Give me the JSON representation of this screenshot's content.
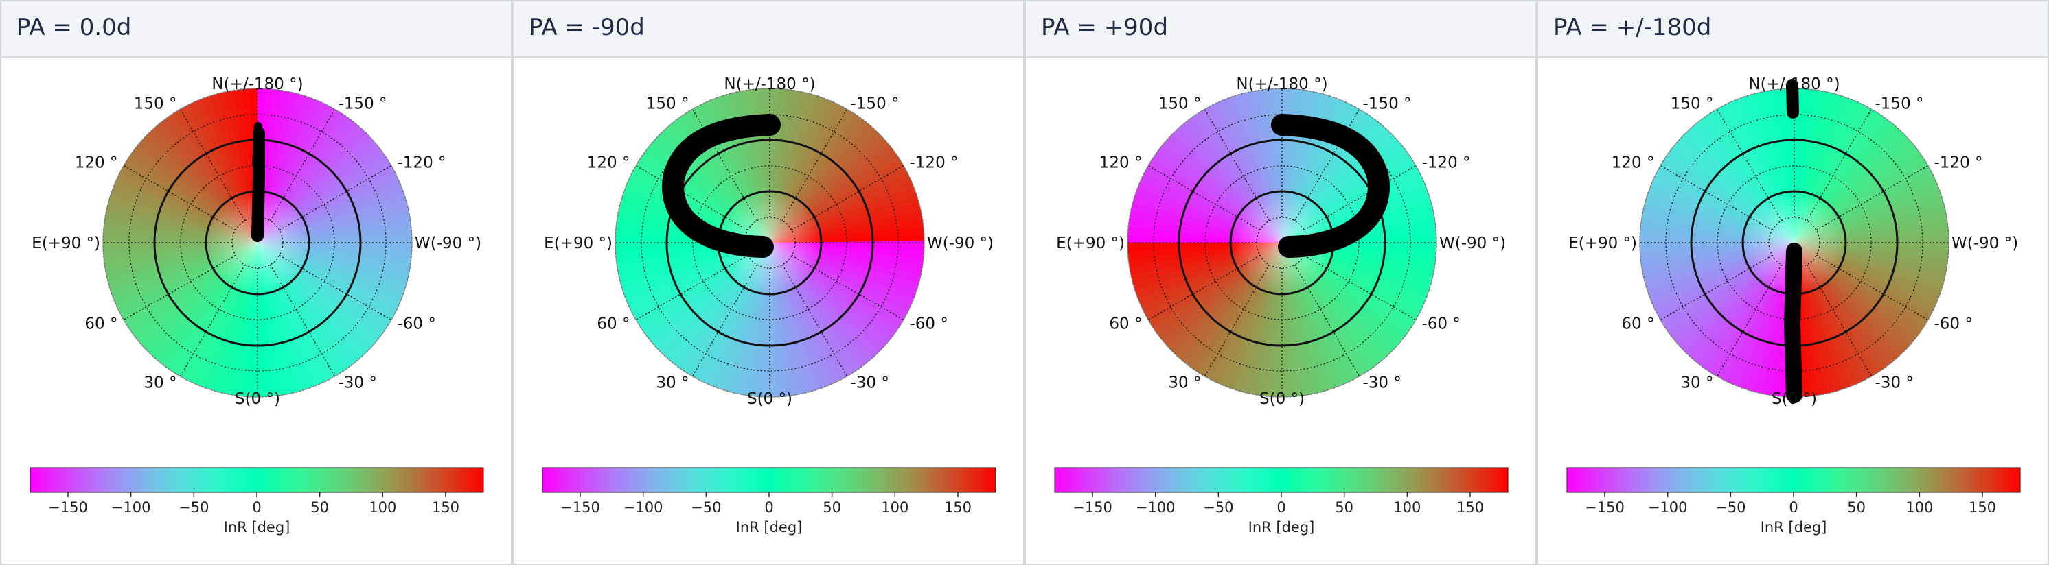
{
  "panels": [
    {
      "title": "PA = 0.0d",
      "track": "vertical-north"
    },
    {
      "title": "PA = -90d",
      "track": "arc-ne"
    },
    {
      "title": "PA = +90d",
      "track": "arc-nw"
    },
    {
      "title": "PA = +/-180d",
      "track": "vertical-both"
    }
  ],
  "chart_data": [
    {
      "type": "heatmap",
      "title": "PA = 0.0d",
      "colorbar": {
        "label": "InR [deg]",
        "range": [
          -180,
          180
        ],
        "ticks": [
          -150,
          -100,
          -50,
          0,
          50,
          100,
          150
        ],
        "colormap": "rainbow"
      }
    },
    {
      "type": "heatmap",
      "title": "PA = -90d",
      "colorbar": {
        "label": "InR [deg]",
        "range": [
          -180,
          180
        ],
        "ticks": [
          -150,
          -100,
          -50,
          0,
          50,
          100,
          150
        ],
        "colormap": "rainbow"
      }
    },
    {
      "type": "heatmap",
      "title": "PA = +90d",
      "colorbar": {
        "label": "InR [deg]",
        "range": [
          -180,
          180
        ],
        "ticks": [
          -150,
          -100,
          -50,
          0,
          50,
          100,
          150
        ],
        "colormap": "rainbow"
      }
    },
    {
      "type": "heatmap",
      "title": "PA = +/-180d",
      "colorbar": {
        "label": "InR [deg]",
        "range": [
          -180,
          180
        ],
        "ticks": [
          -150,
          -100,
          -50,
          0,
          50,
          100,
          150
        ],
        "colormap": "rainbow"
      }
    }
  ],
  "polar": {
    "north": "N(+/-180 °)",
    "south": "S(0 °)",
    "east": "E(+90 °)",
    "west": "W(-90 °)",
    "angle_labels": [
      "150 °",
      "-150 °",
      "120 °",
      "-120 °",
      "60 °",
      "-60 °",
      "30 °",
      "-30 °"
    ]
  },
  "colors": {
    "track": "#000000",
    "header_bg": "#f2f4f7",
    "border": "#d5d9de"
  }
}
